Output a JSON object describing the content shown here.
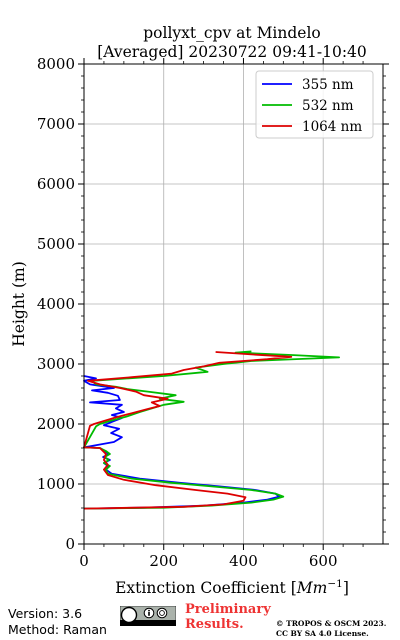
{
  "chart_data": {
    "type": "line",
    "title_line1": "pollyxt_cpv at Mindelo",
    "title_line2": "[Averaged] 20230722 09:41-10:40",
    "xlabel": "Extinction Coefficient [",
    "xlabel_unit": "Mm",
    "xlabel_exp": "−1",
    "xlabel_close": "]",
    "ylabel": "Height (m)",
    "xlim": [
      0,
      750
    ],
    "ylim": [
      0,
      8000
    ],
    "x_ticks": [
      0,
      200,
      400,
      600
    ],
    "x_tick_labels": [
      "0",
      "200",
      "400",
      "600"
    ],
    "y_ticks": [
      0,
      1000,
      2000,
      3000,
      4000,
      5000,
      6000,
      7000,
      8000
    ],
    "y_tick_labels": [
      "0",
      "1000",
      "2000",
      "3000",
      "4000",
      "5000",
      "6000",
      "7000",
      "8000"
    ],
    "grid": true,
    "legend_position": "top-right",
    "series": [
      {
        "name": "355 nm",
        "color": "#0000ff",
        "points": [
          [
            0,
            590
          ],
          [
            150,
            605
          ],
          [
            300,
            640
          ],
          [
            400,
            690
          ],
          [
            460,
            740
          ],
          [
            490,
            790
          ],
          [
            480,
            840
          ],
          [
            430,
            900
          ],
          [
            340,
            960
          ],
          [
            240,
            1020
          ],
          [
            140,
            1090
          ],
          [
            70,
            1170
          ],
          [
            55,
            1240
          ],
          [
            60,
            1300
          ],
          [
            50,
            1350
          ],
          [
            65,
            1400
          ],
          [
            48,
            1450
          ],
          [
            62,
            1500
          ],
          [
            52,
            1550
          ],
          [
            40,
            1600
          ],
          [
            0,
            1610
          ],
          [
            75,
            1700
          ],
          [
            95,
            1780
          ],
          [
            68,
            1850
          ],
          [
            88,
            1920
          ],
          [
            50,
            1980
          ],
          [
            72,
            2040
          ],
          [
            95,
            2100
          ],
          [
            70,
            2150
          ],
          [
            100,
            2200
          ],
          [
            80,
            2260
          ],
          [
            95,
            2320
          ],
          [
            15,
            2360
          ],
          [
            90,
            2400
          ],
          [
            85,
            2470
          ],
          [
            60,
            2520
          ],
          [
            20,
            2560
          ],
          [
            75,
            2600
          ],
          [
            15,
            2660
          ],
          [
            0,
            2720
          ],
          [
            30,
            2760
          ],
          [
            0,
            2800
          ]
        ]
      },
      {
        "name": "532 nm",
        "color": "#00bb00",
        "points": [
          [
            0,
            590
          ],
          [
            200,
            605
          ],
          [
            320,
            640
          ],
          [
            420,
            690
          ],
          [
            475,
            740
          ],
          [
            500,
            790
          ],
          [
            480,
            840
          ],
          [
            420,
            900
          ],
          [
            320,
            960
          ],
          [
            220,
            1020
          ],
          [
            120,
            1090
          ],
          [
            60,
            1170
          ],
          [
            55,
            1240
          ],
          [
            65,
            1300
          ],
          [
            50,
            1350
          ],
          [
            62,
            1400
          ],
          [
            52,
            1450
          ],
          [
            65,
            1500
          ],
          [
            55,
            1550
          ],
          [
            40,
            1600
          ],
          [
            0,
            1610
          ],
          [
            30,
            1960
          ],
          [
            40,
            2000
          ],
          [
            70,
            2060
          ],
          [
            105,
            2120
          ],
          [
            140,
            2200
          ],
          [
            170,
            2260
          ],
          [
            200,
            2320
          ],
          [
            250,
            2370
          ],
          [
            190,
            2420
          ],
          [
            230,
            2480
          ],
          [
            160,
            2540
          ],
          [
            110,
            2580
          ],
          [
            80,
            2620
          ],
          [
            30,
            2660
          ],
          [
            20,
            2720
          ],
          [
            200,
            2800
          ],
          [
            310,
            2870
          ],
          [
            280,
            2940
          ],
          [
            350,
            3000
          ],
          [
            420,
            3050
          ],
          [
            640,
            3110
          ],
          [
            520,
            3150
          ],
          [
            380,
            3190
          ],
          [
            420,
            3210
          ]
        ]
      },
      {
        "name": "1064 nm",
        "color": "#dd0000",
        "points": [
          [
            0,
            590
          ],
          [
            250,
            620
          ],
          [
            350,
            660
          ],
          [
            400,
            720
          ],
          [
            405,
            780
          ],
          [
            360,
            840
          ],
          [
            280,
            900
          ],
          [
            180,
            980
          ],
          [
            100,
            1070
          ],
          [
            60,
            1150
          ],
          [
            50,
            1240
          ],
          [
            60,
            1320
          ],
          [
            50,
            1400
          ],
          [
            55,
            1500
          ],
          [
            40,
            1600
          ],
          [
            0,
            1610
          ],
          [
            15,
            1970
          ],
          [
            25,
            2000
          ],
          [
            50,
            2050
          ],
          [
            80,
            2110
          ],
          [
            120,
            2180
          ],
          [
            160,
            2250
          ],
          [
            190,
            2300
          ],
          [
            170,
            2360
          ],
          [
            210,
            2420
          ],
          [
            150,
            2480
          ],
          [
            130,
            2540
          ],
          [
            90,
            2600
          ],
          [
            40,
            2660
          ],
          [
            10,
            2720
          ],
          [
            120,
            2780
          ],
          [
            220,
            2840
          ],
          [
            250,
            2900
          ],
          [
            300,
            2960
          ],
          [
            340,
            3020
          ],
          [
            460,
            3080
          ],
          [
            520,
            3120
          ],
          [
            420,
            3160
          ],
          [
            330,
            3200
          ]
        ]
      }
    ]
  },
  "footer": {
    "version": "Version: 3.6",
    "method": "Method: Raman",
    "preliminary_line1": "Preliminary",
    "preliminary_line2": "Results.",
    "copyright_line1": "© TROPOS & OSCM 2023.",
    "copyright_line2": "CC BY SA 4.0 License."
  }
}
